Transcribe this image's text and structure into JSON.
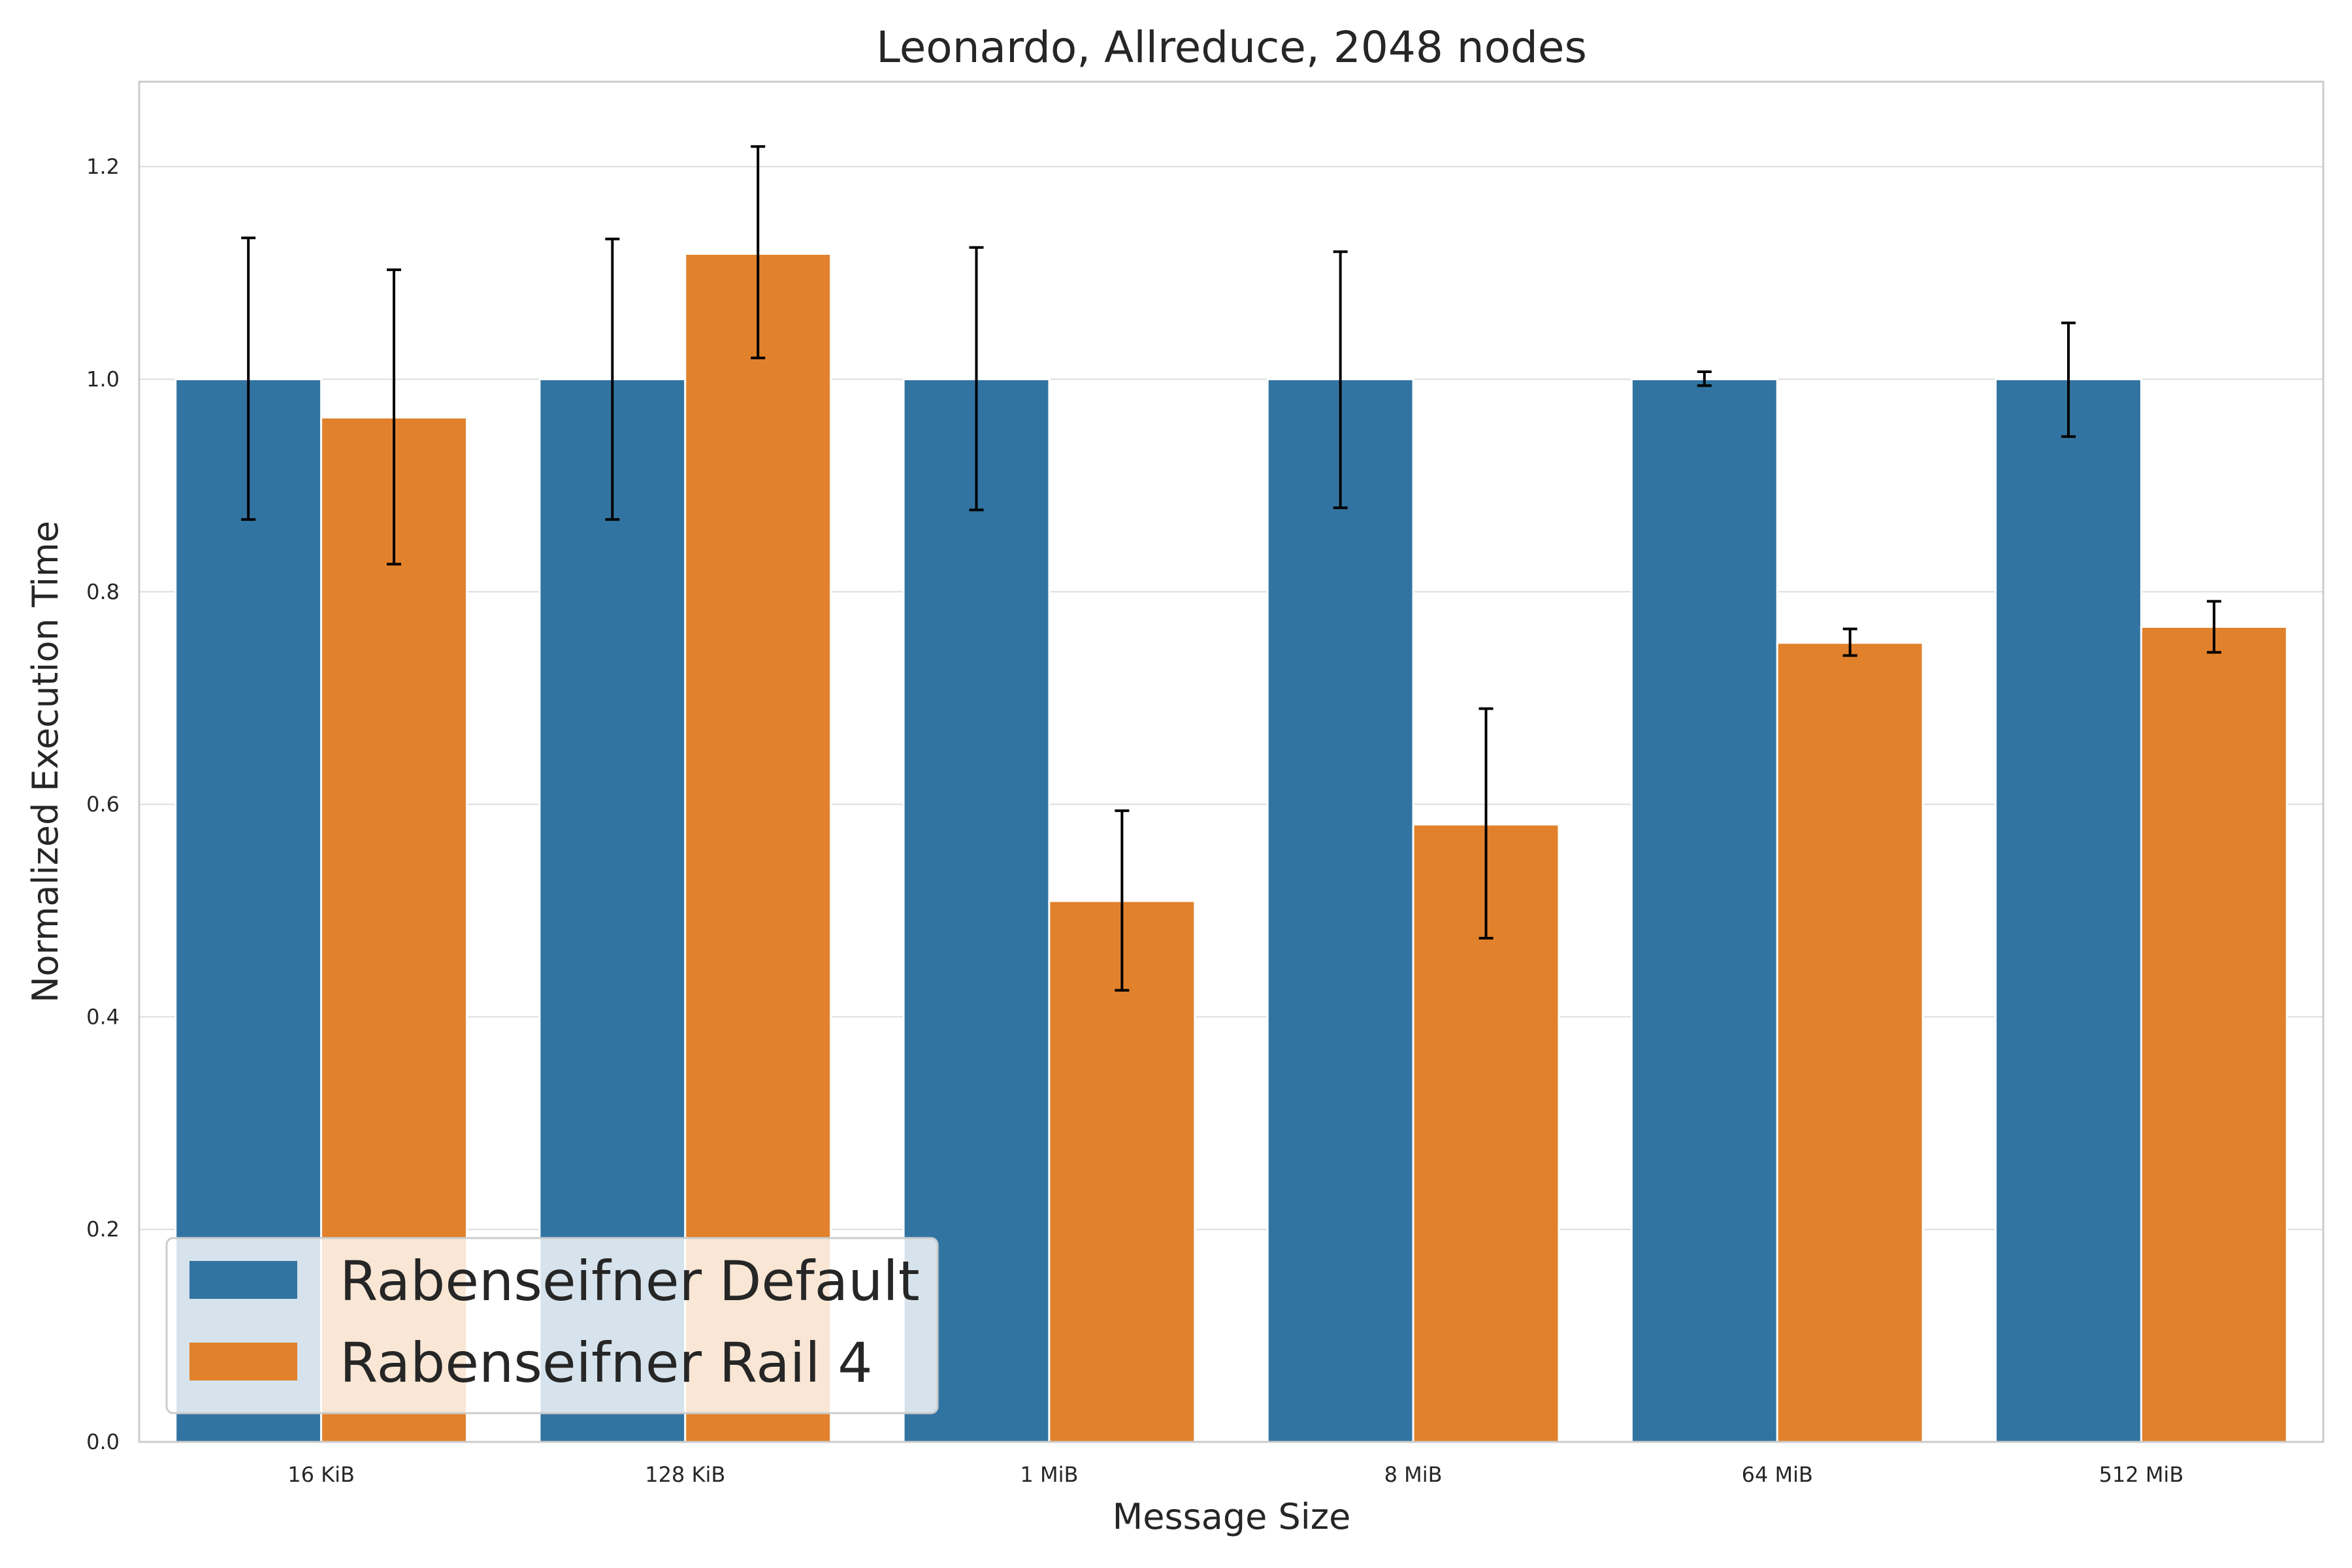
{
  "chart_data": {
    "type": "bar",
    "title": "Leonardo, Allreduce, 2048 nodes",
    "xlabel": "Message Size",
    "ylabel": "Normalized Execution Time",
    "ylim": [
      0,
      1.28
    ],
    "yticks": [
      0.0,
      0.2,
      0.4,
      0.6,
      0.8,
      1.0,
      1.2
    ],
    "ytick_labels": [
      "0.0",
      "0.2",
      "0.4",
      "0.6",
      "0.8",
      "1.0",
      "1.2"
    ],
    "grid": true,
    "legend_position": "bottom-left",
    "categories": [
      "16 KiB",
      "128 KiB",
      "1 MiB",
      "8 MiB",
      "64 MiB",
      "512 MiB"
    ],
    "series": [
      {
        "name": "Rabenseifner Default",
        "color": "#3274a1",
        "values": [
          1.0,
          1.0,
          1.0,
          1.0,
          1.0,
          1.0
        ],
        "err_low": [
          0.868,
          0.868,
          0.877,
          0.879,
          0.994,
          0.946
        ],
        "err_high": [
          1.133,
          1.132,
          1.124,
          1.12,
          1.007,
          1.053
        ]
      },
      {
        "name": "Rabenseifner Rail 4",
        "color": "#e1812c",
        "values": [
          0.964,
          1.118,
          0.509,
          0.581,
          0.752,
          0.767
        ],
        "err_low": [
          0.826,
          1.02,
          0.425,
          0.474,
          0.74,
          0.743
        ],
        "err_high": [
          1.103,
          1.219,
          0.594,
          0.69,
          0.765,
          0.791
        ]
      }
    ]
  }
}
